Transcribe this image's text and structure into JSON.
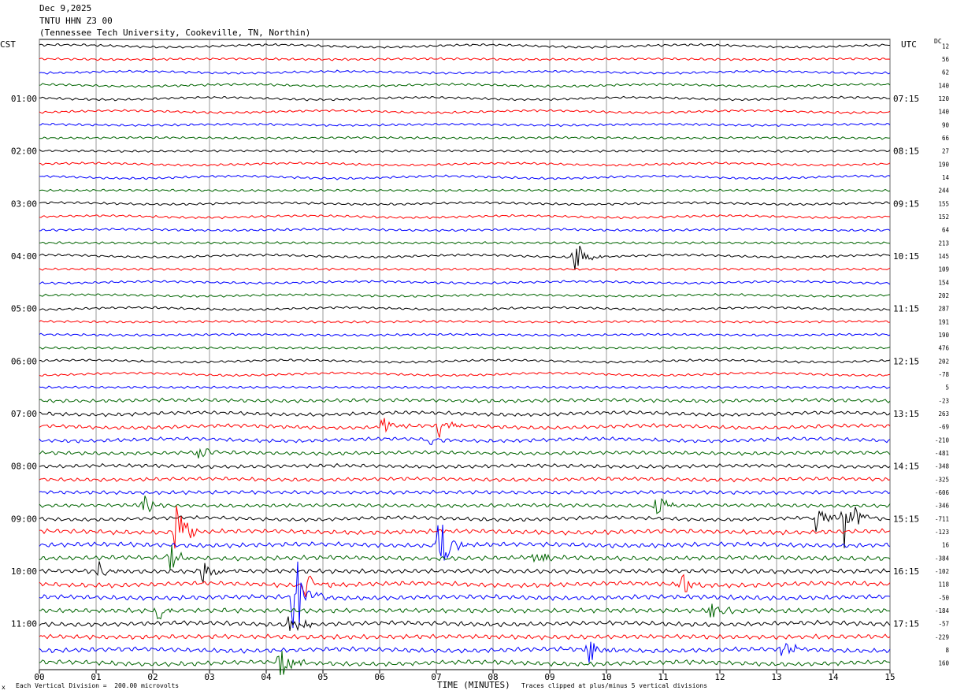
{
  "header": {
    "date": "Dec 9,2025",
    "station": "TNTU HHN Z3 00",
    "location": "(Tennessee Tech University, Cookeville, TN, Northin)"
  },
  "left_zone_label": "CST",
  "right_zone_label": "UTC",
  "dc_label": "DC",
  "footer": {
    "scale_note": "Each Vertical Division =  200.00 microvolts",
    "x_axis_title": "TIME (MINUTES)",
    "clip_note": "Traces clipped at plus/minus 5 vertical divisions",
    "corner_mark": "x"
  },
  "colors": {
    "trace_cycle": [
      "#000000",
      "#ff0000",
      "#0000ff",
      "#006400"
    ],
    "grid": "#808080"
  },
  "chart_data": {
    "type": "line",
    "title": "TNTU HHN Z3 00",
    "xlabel": "TIME (MINUTES)",
    "xlim": [
      0,
      15
    ],
    "x_ticks": [
      "00",
      "01",
      "02",
      "03",
      "04",
      "05",
      "06",
      "07",
      "08",
      "09",
      "10",
      "11",
      "12",
      "13",
      "14",
      "15"
    ],
    "rows": 48,
    "minutes_per_row": 15,
    "left_time_labels": [
      {
        "row": 4,
        "label": "01:00"
      },
      {
        "row": 8,
        "label": "02:00"
      },
      {
        "row": 12,
        "label": "03:00"
      },
      {
        "row": 16,
        "label": "04:00"
      },
      {
        "row": 20,
        "label": "05:00"
      },
      {
        "row": 24,
        "label": "06:00"
      },
      {
        "row": 28,
        "label": "07:00"
      },
      {
        "row": 32,
        "label": "08:00"
      },
      {
        "row": 36,
        "label": "09:00"
      },
      {
        "row": 40,
        "label": "10:00"
      },
      {
        "row": 44,
        "label": "11:00"
      }
    ],
    "right_time_labels": [
      {
        "row": 4,
        "label": "07:15"
      },
      {
        "row": 8,
        "label": "08:15"
      },
      {
        "row": 12,
        "label": "09:15"
      },
      {
        "row": 16,
        "label": "10:15"
      },
      {
        "row": 20,
        "label": "11:15"
      },
      {
        "row": 24,
        "label": "12:15"
      },
      {
        "row": 28,
        "label": "13:15"
      },
      {
        "row": 32,
        "label": "14:15"
      },
      {
        "row": 36,
        "label": "15:15"
      },
      {
        "row": 40,
        "label": "16:15"
      },
      {
        "row": 44,
        "label": "17:15"
      }
    ],
    "dc_offsets": [
      "12",
      "56",
      "62",
      "140",
      "120",
      "140",
      "90",
      "66",
      "27",
      "190",
      "14",
      "244",
      "155",
      "152",
      "64",
      "213",
      "145",
      "109",
      "154",
      "202",
      "287",
      "191",
      "190",
      "476",
      "202",
      "-78",
      "5",
      "-23",
      "263",
      "-69",
      "-210",
      "-481",
      "-348",
      "-325",
      "-606",
      "-346",
      "-711",
      "-123",
      "16",
      "-384",
      "-102",
      "118",
      "-50",
      "-184",
      "-57",
      "-229",
      "8",
      "160"
    ],
    "events": [
      {
        "row": 16,
        "minute": 9.45,
        "amp": 1.6
      },
      {
        "row": 29,
        "minute": 6.05,
        "amp": 0.9
      },
      {
        "row": 29,
        "minute": 7.05,
        "amp": 1.0
      },
      {
        "row": 30,
        "minute": 6.9,
        "amp": 0.6
      },
      {
        "row": 31,
        "minute": 2.8,
        "amp": 0.8
      },
      {
        "row": 35,
        "minute": 1.85,
        "amp": 1.1
      },
      {
        "row": 35,
        "minute": 10.9,
        "amp": 1.0
      },
      {
        "row": 36,
        "minute": 13.7,
        "amp": 1.3
      },
      {
        "row": 36,
        "minute": 14.2,
        "amp": 3.0
      },
      {
        "row": 37,
        "minute": 2.4,
        "amp": 3.2
      },
      {
        "row": 38,
        "minute": 7.05,
        "amp": 2.6
      },
      {
        "row": 39,
        "minute": 2.3,
        "amp": 1.4
      },
      {
        "row": 39,
        "minute": 8.75,
        "amp": 0.9
      },
      {
        "row": 40,
        "minute": 1.05,
        "amp": 1.0
      },
      {
        "row": 40,
        "minute": 2.9,
        "amp": 1.2
      },
      {
        "row": 41,
        "minute": 4.7,
        "amp": 1.8
      },
      {
        "row": 41,
        "minute": 11.3,
        "amp": 1.2
      },
      {
        "row": 42,
        "minute": 4.5,
        "amp": 4.5
      },
      {
        "row": 43,
        "minute": 2.1,
        "amp": 0.9
      },
      {
        "row": 43,
        "minute": 11.85,
        "amp": 0.9
      },
      {
        "row": 44,
        "minute": 4.4,
        "amp": 1.4
      },
      {
        "row": 46,
        "minute": 9.7,
        "amp": 1.2
      },
      {
        "row": 46,
        "minute": 13.1,
        "amp": 1.0
      },
      {
        "row": 47,
        "minute": 4.25,
        "amp": 1.6
      }
    ]
  }
}
